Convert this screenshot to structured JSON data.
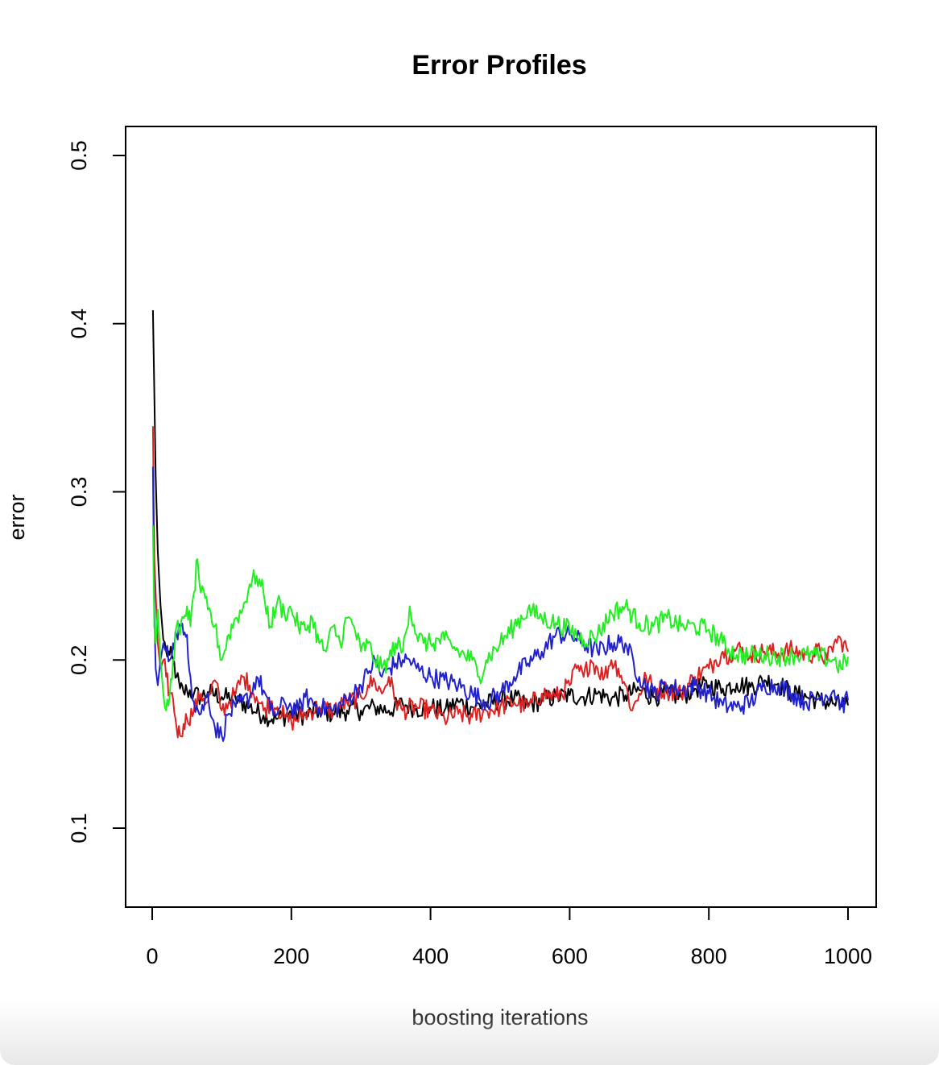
{
  "chart_data": {
    "type": "line",
    "title": "Error Profiles",
    "xlabel": "boosting iterations",
    "ylabel": "error",
    "xlim": [
      0,
      1000
    ],
    "ylim": [
      0.05,
      0.5
    ],
    "x_ticks": [
      0,
      200,
      400,
      600,
      800,
      1000
    ],
    "y_ticks": [
      0.1,
      0.2,
      0.3,
      0.4,
      0.5
    ],
    "x_tick_labels": [
      "0",
      "200",
      "400",
      "600",
      "800",
      "1000"
    ],
    "y_tick_labels": [
      "0.1",
      "0.2",
      "0.3",
      "0.4",
      "0.5"
    ],
    "grid": false,
    "legend": "none",
    "series": [
      {
        "color": "#000000",
        "x": [
          1,
          3,
          5,
          8,
          12,
          16,
          20,
          25,
          30,
          35,
          40,
          45,
          50,
          60,
          70,
          80,
          100,
          120,
          140,
          160,
          180,
          200,
          220,
          240,
          260,
          280,
          300,
          320,
          340,
          360,
          380,
          400,
          420,
          440,
          460,
          480,
          500,
          520,
          540,
          560,
          580,
          600,
          620,
          640,
          660,
          680,
          700,
          720,
          740,
          760,
          780,
          800,
          820,
          840,
          860,
          880,
          900,
          920,
          940,
          960,
          980,
          1000
        ],
        "y": [
          0.408,
          0.36,
          0.31,
          0.265,
          0.232,
          0.212,
          0.205,
          0.203,
          0.2,
          0.19,
          0.183,
          0.181,
          0.182,
          0.18,
          0.178,
          0.181,
          0.178,
          0.177,
          0.172,
          0.167,
          0.165,
          0.168,
          0.167,
          0.17,
          0.168,
          0.17,
          0.17,
          0.172,
          0.17,
          0.174,
          0.171,
          0.172,
          0.17,
          0.175,
          0.172,
          0.174,
          0.176,
          0.177,
          0.173,
          0.176,
          0.178,
          0.179,
          0.178,
          0.18,
          0.177,
          0.179,
          0.182,
          0.178,
          0.18,
          0.178,
          0.183,
          0.185,
          0.183,
          0.186,
          0.184,
          0.188,
          0.186,
          0.18,
          0.178,
          0.176,
          0.174,
          0.173
        ]
      },
      {
        "color": "#dd2222",
        "x": [
          1,
          3,
          5,
          8,
          12,
          16,
          20,
          25,
          30,
          35,
          40,
          45,
          50,
          60,
          70,
          80,
          90,
          100,
          110,
          120,
          130,
          140,
          150,
          160,
          170,
          180,
          190,
          200,
          220,
          240,
          260,
          280,
          300,
          310,
          320,
          330,
          340,
          350,
          360,
          380,
          400,
          420,
          440,
          460,
          480,
          500,
          520,
          540,
          560,
          580,
          600,
          610,
          620,
          630,
          640,
          650,
          660,
          670,
          680,
          690,
          700,
          710,
          720,
          740,
          760,
          780,
          800,
          810,
          820,
          830,
          840,
          860,
          880,
          900,
          920,
          940,
          960,
          970,
          980,
          990,
          1000
        ],
        "y": [
          0.339,
          0.26,
          0.24,
          0.21,
          0.195,
          0.2,
          0.19,
          0.18,
          0.177,
          0.16,
          0.155,
          0.162,
          0.165,
          0.17,
          0.18,
          0.175,
          0.188,
          0.17,
          0.175,
          0.18,
          0.19,
          0.185,
          0.178,
          0.17,
          0.175,
          0.172,
          0.166,
          0.163,
          0.168,
          0.172,
          0.17,
          0.175,
          0.178,
          0.185,
          0.187,
          0.18,
          0.19,
          0.176,
          0.17,
          0.172,
          0.17,
          0.165,
          0.168,
          0.166,
          0.17,
          0.172,
          0.175,
          0.172,
          0.18,
          0.178,
          0.185,
          0.195,
          0.19,
          0.2,
          0.195,
          0.19,
          0.2,
          0.195,
          0.185,
          0.17,
          0.18,
          0.19,
          0.183,
          0.182,
          0.18,
          0.19,
          0.195,
          0.2,
          0.205,
          0.203,
          0.207,
          0.203,
          0.205,
          0.204,
          0.206,
          0.203,
          0.205,
          0.2,
          0.21,
          0.212,
          0.205
        ]
      },
      {
        "color": "#2222cc",
        "x": [
          1,
          3,
          5,
          8,
          12,
          16,
          20,
          25,
          30,
          35,
          40,
          45,
          50,
          55,
          60,
          70,
          80,
          90,
          100,
          110,
          120,
          130,
          140,
          150,
          160,
          170,
          180,
          190,
          200,
          210,
          220,
          240,
          260,
          280,
          300,
          310,
          320,
          330,
          340,
          350,
          360,
          370,
          380,
          400,
          420,
          440,
          460,
          480,
          500,
          520,
          540,
          560,
          580,
          600,
          620,
          640,
          660,
          680,
          700,
          720,
          740,
          760,
          780,
          800,
          820,
          840,
          860,
          880,
          900,
          920,
          940,
          960,
          980,
          990,
          1000
        ],
        "y": [
          0.315,
          0.23,
          0.195,
          0.185,
          0.2,
          0.21,
          0.205,
          0.2,
          0.21,
          0.215,
          0.22,
          0.215,
          0.215,
          0.19,
          0.175,
          0.168,
          0.18,
          0.16,
          0.155,
          0.168,
          0.172,
          0.175,
          0.178,
          0.19,
          0.182,
          0.17,
          0.168,
          0.175,
          0.172,
          0.17,
          0.178,
          0.172,
          0.17,
          0.176,
          0.185,
          0.192,
          0.2,
          0.19,
          0.195,
          0.198,
          0.2,
          0.2,
          0.195,
          0.19,
          0.188,
          0.185,
          0.18,
          0.175,
          0.18,
          0.19,
          0.198,
          0.205,
          0.215,
          0.215,
          0.21,
          0.205,
          0.21,
          0.21,
          0.19,
          0.18,
          0.185,
          0.182,
          0.185,
          0.18,
          0.173,
          0.172,
          0.175,
          0.185,
          0.185,
          0.18,
          0.175,
          0.178,
          0.182,
          0.173,
          0.176
        ]
      },
      {
        "color": "#22ee22",
        "x": [
          1,
          3,
          5,
          8,
          12,
          16,
          20,
          25,
          30,
          35,
          40,
          45,
          50,
          55,
          60,
          65,
          70,
          80,
          90,
          100,
          110,
          120,
          130,
          140,
          150,
          160,
          170,
          180,
          190,
          200,
          210,
          220,
          230,
          240,
          250,
          260,
          270,
          280,
          290,
          300,
          310,
          320,
          330,
          340,
          350,
          360,
          370,
          380,
          390,
          400,
          420,
          440,
          460,
          470,
          480,
          500,
          520,
          540,
          560,
          580,
          600,
          620,
          640,
          660,
          680,
          700,
          720,
          740,
          760,
          780,
          800,
          820,
          840,
          860,
          880,
          900,
          920,
          940,
          960,
          980,
          990,
          1000
        ],
        "y": [
          0.28,
          0.22,
          0.21,
          0.23,
          0.2,
          0.18,
          0.17,
          0.178,
          0.2,
          0.22,
          0.215,
          0.225,
          0.232,
          0.22,
          0.24,
          0.26,
          0.24,
          0.23,
          0.22,
          0.2,
          0.215,
          0.225,
          0.23,
          0.245,
          0.25,
          0.24,
          0.22,
          0.235,
          0.228,
          0.23,
          0.22,
          0.218,
          0.225,
          0.21,
          0.205,
          0.22,
          0.21,
          0.225,
          0.22,
          0.205,
          0.21,
          0.2,
          0.195,
          0.2,
          0.21,
          0.205,
          0.232,
          0.215,
          0.21,
          0.21,
          0.212,
          0.205,
          0.2,
          0.19,
          0.2,
          0.21,
          0.22,
          0.23,
          0.225,
          0.222,
          0.218,
          0.212,
          0.215,
          0.228,
          0.232,
          0.222,
          0.22,
          0.225,
          0.22,
          0.22,
          0.218,
          0.21,
          0.203,
          0.203,
          0.203,
          0.202,
          0.203,
          0.203,
          0.202,
          0.2,
          0.195,
          0.202
        ]
      }
    ]
  }
}
